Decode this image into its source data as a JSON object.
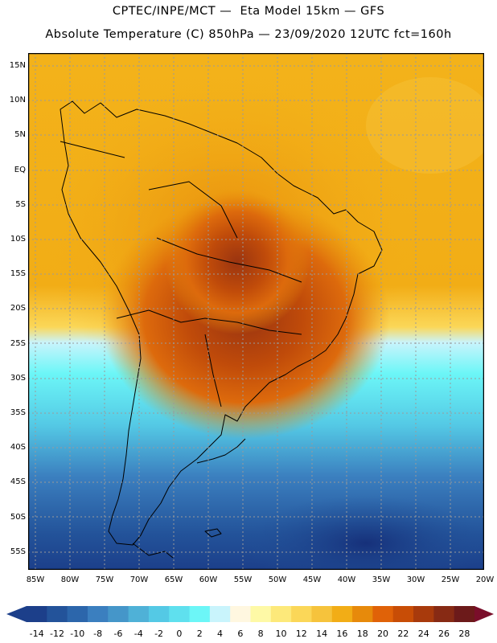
{
  "title_line1": "CPTEC/INPE/MCT —  Eta Model 15km — GFS",
  "title_line2": "Absolute Temperature (C) 850hPa — 23/09/2020 12UTC fct=160h",
  "lat_labels": [
    "15N",
    "10N",
    "5N",
    "EQ",
    "5S",
    "10S",
    "15S",
    "20S",
    "25S",
    "30S",
    "35S",
    "40S",
    "45S",
    "50S",
    "55S"
  ],
  "lon_labels": [
    "85W",
    "80W",
    "75W",
    "70W",
    "65W",
    "60W",
    "55W",
    "50W",
    "45W",
    "40W",
    "35W",
    "30W",
    "25W",
    "20W"
  ],
  "colorbar": {
    "labels": [
      "-14",
      "-12",
      "-10",
      "-8",
      "-6",
      "-4",
      "-2",
      "0",
      "2",
      "4",
      "6",
      "8",
      "10",
      "12",
      "14",
      "16",
      "18",
      "20",
      "22",
      "24",
      "26",
      "28"
    ],
    "colors": [
      "#1c3f8a",
      "#23539a",
      "#2c66ab",
      "#3b7fbf",
      "#4596c9",
      "#4fb1d7",
      "#54c9e5",
      "#5fe0ee",
      "#6cf6f7",
      "#c9f4fc",
      "#fff7e0",
      "#fef9a6",
      "#fde97a",
      "#fbd758",
      "#f6c33c",
      "#f2ad16",
      "#e78a0b",
      "#e06208",
      "#c84d06",
      "#a83a0c",
      "#872a14",
      "#6c1a1a"
    ],
    "left_arrow_color": "#1c3f8a",
    "right_arrow_color": "#7a0e2a"
  }
}
